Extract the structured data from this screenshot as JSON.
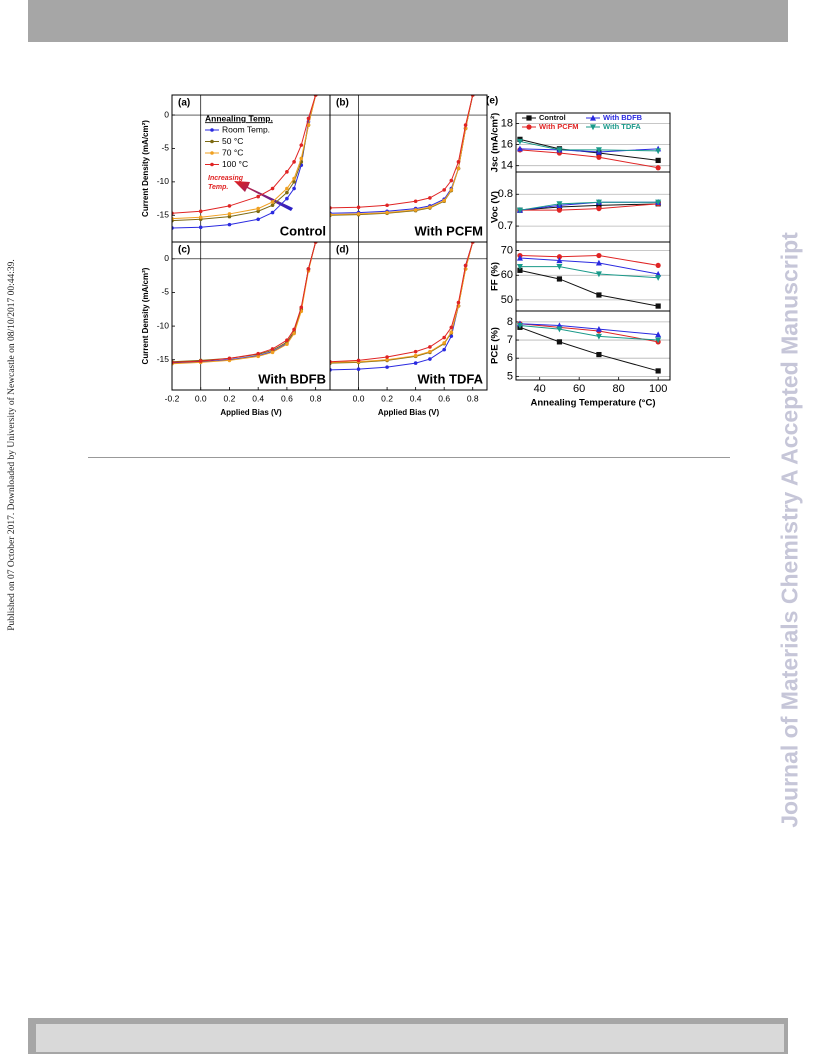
{
  "side_note": "Published on 07 October 2017. Downloaded by University of Newcastle on 08/10/2017 00:44:39.",
  "watermark": "Journal of Materials Chemistry A Accepted Manuscript",
  "chart_data": [
    {
      "type": "line",
      "label": "(a)",
      "panel_title": "Control",
      "y_label": "Current Density (mA/cm²)",
      "legend_title": "Annealing Temp.",
      "annotation": [
        "Increasing",
        "Temp."
      ],
      "x": [
        -0.2,
        0,
        0.2,
        0.4,
        0.5,
        0.6,
        0.65,
        0.7,
        0.75,
        0.8
      ],
      "xlim": [
        -0.2,
        0.9
      ],
      "ylim": [
        -19,
        3
      ],
      "yticks": [
        0,
        -5,
        -10,
        -15
      ],
      "series": [
        {
          "name": "Room Temp.",
          "color": "#2a2ae0",
          "values": [
            -16.9,
            -16.8,
            -16.4,
            -15.6,
            -14.6,
            -12.5,
            -11,
            -7.5,
            -1,
            3
          ]
        },
        {
          "name": "50 °C",
          "color": "#7d6a12",
          "values": [
            -15.8,
            -15.6,
            -15.2,
            -14.4,
            -13.5,
            -11.6,
            -10,
            -7,
            -1.5,
            3
          ]
        },
        {
          "name": "70 °C",
          "color": "#f0a020",
          "values": [
            -15.5,
            -15.3,
            -14.8,
            -14,
            -13,
            -11,
            -9.5,
            -6.5,
            -1.5,
            3
          ]
        },
        {
          "name": "100 °C",
          "color": "#e02424",
          "values": [
            -14.7,
            -14.4,
            -13.6,
            -12.2,
            -11,
            -8.5,
            -7,
            -4.5,
            -0.5,
            3
          ]
        }
      ]
    },
    {
      "type": "line",
      "label": "(b)",
      "panel_title": "With PCFM",
      "x": [
        -0.2,
        0,
        0.2,
        0.4,
        0.5,
        0.6,
        0.65,
        0.7,
        0.75,
        0.8
      ],
      "xlim": [
        -0.2,
        0.9
      ],
      "ylim": [
        -19,
        3
      ],
      "series": [
        {
          "color": "#2a2ae0",
          "values": [
            -14.7,
            -14.6,
            -14.4,
            -14,
            -13.6,
            -12.6,
            -11,
            -8,
            -2,
            3
          ]
        },
        {
          "color": "#7d6a12",
          "values": [
            -15,
            -14.9,
            -14.7,
            -14.3,
            -13.9,
            -12.9,
            -11.3,
            -8,
            -2,
            3
          ]
        },
        {
          "color": "#f0a020",
          "values": [
            -14.9,
            -14.8,
            -14.6,
            -14.2,
            -13.8,
            -12.8,
            -11.2,
            -8,
            -2,
            3
          ]
        },
        {
          "color": "#e02424",
          "values": [
            -13.9,
            -13.8,
            -13.5,
            -12.9,
            -12.4,
            -11.2,
            -9.8,
            -7,
            -1.5,
            3
          ]
        }
      ]
    },
    {
      "type": "line",
      "label": "(c)",
      "panel_title": "With BDFB",
      "y_label": "Current Density (mA/cm²)",
      "x_label": "Applied Bias (V)",
      "x": [
        -0.2,
        0,
        0.2,
        0.4,
        0.5,
        0.6,
        0.65,
        0.7,
        0.75,
        0.8
      ],
      "xlim": [
        -0.2,
        0.9
      ],
      "ylim": [
        -19.5,
        2.5
      ],
      "yticks": [
        0,
        -5,
        -10,
        -15
      ],
      "xticks": [
        -0.2,
        {
          "value": 0,
          "label": "0.0"
        },
        0.2,
        0.4,
        0.6,
        0.8
      ],
      "series": [
        {
          "color": "#2a2ae0",
          "values": [
            -15.5,
            -15.3,
            -15,
            -14.4,
            -13.8,
            -12.6,
            -11,
            -7.5,
            -1.5,
            2.5
          ]
        },
        {
          "color": "#7d6a12",
          "values": [
            -15.3,
            -15.1,
            -14.8,
            -14.2,
            -13.6,
            -12.4,
            -10.8,
            -7.5,
            -1.5,
            2.5
          ]
        },
        {
          "color": "#f0a020",
          "values": [
            -15.6,
            -15.4,
            -15.1,
            -14.5,
            -13.9,
            -12.7,
            -11.1,
            -7.8,
            -1.8,
            2.5
          ]
        },
        {
          "color": "#e02424",
          "values": [
            -15.4,
            -15.2,
            -14.8,
            -14.1,
            -13.4,
            -12.1,
            -10.5,
            -7.2,
            -1.5,
            2.5
          ]
        }
      ]
    },
    {
      "type": "line",
      "label": "(d)",
      "panel_title": "With TDFA",
      "x_label": "Applied Bias (V)",
      "x": [
        -0.2,
        0,
        0.2,
        0.4,
        0.5,
        0.6,
        0.65,
        0.7,
        0.75,
        0.8
      ],
      "xlim": [
        -0.2,
        0.9
      ],
      "ylim": [
        -19.5,
        2.5
      ],
      "xticks": [
        {
          "value": 0,
          "label": "0.0"
        },
        0.2,
        0.4,
        0.6,
        0.8
      ],
      "series": [
        {
          "color": "#2a2ae0",
          "values": [
            -16.5,
            -16.4,
            -16.1,
            -15.5,
            -14.9,
            -13.5,
            -11.5,
            -7,
            -1,
            2.5
          ]
        },
        {
          "color": "#7d6a12",
          "values": [
            -15.5,
            -15.4,
            -15.1,
            -14.5,
            -13.9,
            -12.6,
            -11,
            -7,
            -1.5,
            2.5
          ]
        },
        {
          "color": "#f0a020",
          "values": [
            -15.4,
            -15.3,
            -15,
            -14.4,
            -13.8,
            -12.5,
            -10.9,
            -7,
            -1.5,
            2.5
          ]
        },
        {
          "color": "#e02424",
          "values": [
            -15.3,
            -15.1,
            -14.6,
            -13.8,
            -13.1,
            -11.7,
            -10.2,
            -6.5,
            -1,
            2.5
          ]
        }
      ]
    },
    {
      "type": "line",
      "label": "(e)",
      "y_label": "Jsc (mA/cm²)",
      "grid": true,
      "x": [
        30,
        50,
        70,
        100
      ],
      "xlim": [
        28,
        106
      ],
      "ylim": [
        13.4,
        19
      ],
      "yticks": [
        14,
        16,
        18
      ],
      "series": [
        {
          "name": "Control",
          "color": "#111111",
          "marker": "square",
          "values": [
            16.5,
            15.6,
            15.2,
            14.5
          ]
        },
        {
          "name": "With PCFM",
          "color": "#e02424",
          "marker": "circle",
          "values": [
            15.5,
            15.2,
            14.8,
            13.8
          ]
        },
        {
          "name": "With BDFB",
          "color": "#2a2ae0",
          "marker": "triangle-up",
          "values": [
            15.6,
            15.5,
            15.3,
            15.6
          ]
        },
        {
          "name": "With TDFA",
          "color": "#1a9a8a",
          "marker": "triangle-down",
          "values": [
            16.3,
            15.5,
            15.5,
            15.4
          ]
        }
      ]
    },
    {
      "type": "line",
      "y_label": "Voc (V)",
      "grid": true,
      "x": [
        30,
        50,
        70,
        100
      ],
      "xlim": [
        28,
        106
      ],
      "ylim": [
        0.65,
        0.87
      ],
      "yticks": [
        0.7,
        0.8
      ],
      "series": [
        {
          "color": "#111111",
          "marker": "square",
          "values": [
            0.75,
            0.76,
            0.765,
            0.77
          ]
        },
        {
          "color": "#e02424",
          "marker": "circle",
          "values": [
            0.75,
            0.75,
            0.755,
            0.77
          ]
        },
        {
          "color": "#2a2ae0",
          "marker": "triangle-up",
          "values": [
            0.75,
            0.765,
            0.775,
            0.775
          ]
        },
        {
          "color": "#1a9a8a",
          "marker": "triangle-down",
          "values": [
            0.75,
            0.77,
            0.775,
            0.775
          ]
        }
      ]
    },
    {
      "type": "line",
      "y_label": "FF (%)",
      "grid": true,
      "x": [
        30,
        50,
        70,
        100
      ],
      "xlim": [
        28,
        106
      ],
      "ylim": [
        45.5,
        73.5
      ],
      "yticks": [
        50,
        60,
        70
      ],
      "series": [
        {
          "color": "#111111",
          "marker": "square",
          "values": [
            62,
            58.5,
            52,
            47.5
          ]
        },
        {
          "color": "#e02424",
          "marker": "circle",
          "values": [
            68,
            67.5,
            68,
            64
          ]
        },
        {
          "color": "#2a2ae0",
          "marker": "triangle-up",
          "values": [
            67,
            66,
            65,
            60.5
          ]
        },
        {
          "color": "#1a9a8a",
          "marker": "triangle-down",
          "values": [
            63.5,
            63.5,
            60.5,
            59
          ]
        }
      ]
    },
    {
      "type": "line",
      "y_label": "PCE (%)",
      "x_label": "Annealing Temperature (°C)",
      "grid": true,
      "x": [
        30,
        50,
        70,
        100
      ],
      "xlim": [
        28,
        106
      ],
      "ylim": [
        4.8,
        8.6
      ],
      "yticks": [
        5,
        6,
        7,
        8
      ],
      "xticks": [
        40,
        60,
        80,
        100
      ],
      "series": [
        {
          "color": "#111111",
          "marker": "square",
          "values": [
            7.7,
            6.9,
            6.2,
            5.3
          ]
        },
        {
          "color": "#e02424",
          "marker": "circle",
          "values": [
            7.9,
            7.7,
            7.5,
            6.9
          ]
        },
        {
          "color": "#2a2ae0",
          "marker": "triangle-up",
          "values": [
            7.9,
            7.8,
            7.6,
            7.3
          ]
        },
        {
          "color": "#1a9a8a",
          "marker": "triangle-down",
          "values": [
            7.8,
            7.6,
            7.2,
            7.0
          ]
        }
      ]
    }
  ]
}
